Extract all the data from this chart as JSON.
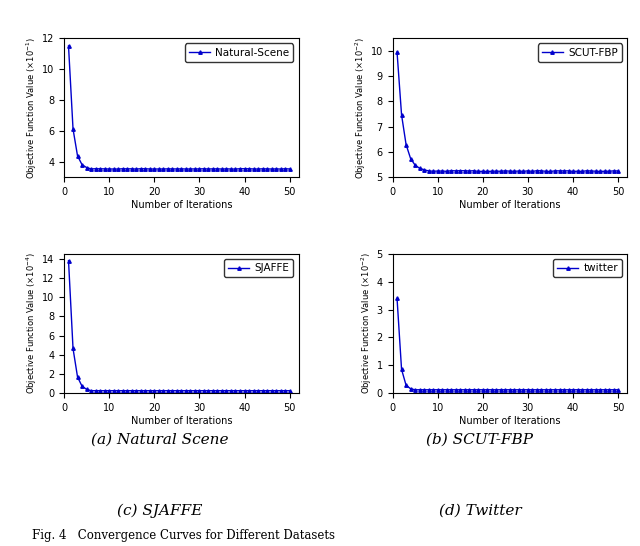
{
  "subplots": [
    {
      "label": "Natural-Scene",
      "caption": "(a) Natural Scene",
      "scale_exp": -1,
      "ylim": [
        3.0,
        12.0
      ],
      "yticks": [
        4,
        6,
        8,
        10,
        12
      ],
      "start_val": 11.5,
      "plateau_val": 3.55,
      "drop_iter": 5,
      "xticks": [
        0,
        10,
        20,
        30,
        40,
        50
      ]
    },
    {
      "label": "SCUT-FBP",
      "caption": "(b) SCUT-FBP",
      "scale_exp": -2,
      "ylim": [
        5.0,
        10.5
      ],
      "yticks": [
        5,
        6,
        7,
        8,
        9,
        10
      ],
      "start_val": 9.95,
      "plateau_val": 5.25,
      "drop_iter": 7,
      "xticks": [
        0,
        10,
        20,
        30,
        40,
        50
      ]
    },
    {
      "label": "SJAFFE",
      "caption": "(c) SJAFFE",
      "scale_exp": -4,
      "ylim": [
        0,
        14.5
      ],
      "yticks": [
        0,
        2,
        4,
        6,
        8,
        10,
        12,
        14
      ],
      "start_val": 13.8,
      "plateau_val": 0.25,
      "drop_iter": 5,
      "xticks": [
        0,
        10,
        20,
        30,
        40,
        50
      ]
    },
    {
      "label": "twitter",
      "caption": "(d) Twitter",
      "scale_exp": -2,
      "ylim": [
        0,
        5.0
      ],
      "yticks": [
        0,
        1,
        2,
        3,
        4,
        5
      ],
      "start_val": 3.4,
      "plateau_val": 0.12,
      "drop_iter": 4,
      "xticks": [
        0,
        10,
        20,
        30,
        40,
        50
      ]
    }
  ],
  "n_iter": 50,
  "line_color": "#0000CC",
  "marker": "^",
  "markersize": 2.5,
  "linewidth": 1.0,
  "xlabel": "Number of Iterations",
  "ylabel_base": "Objective Function Value",
  "fig_caption": "Fig. 4   Convergence Curves for Different Datasets"
}
